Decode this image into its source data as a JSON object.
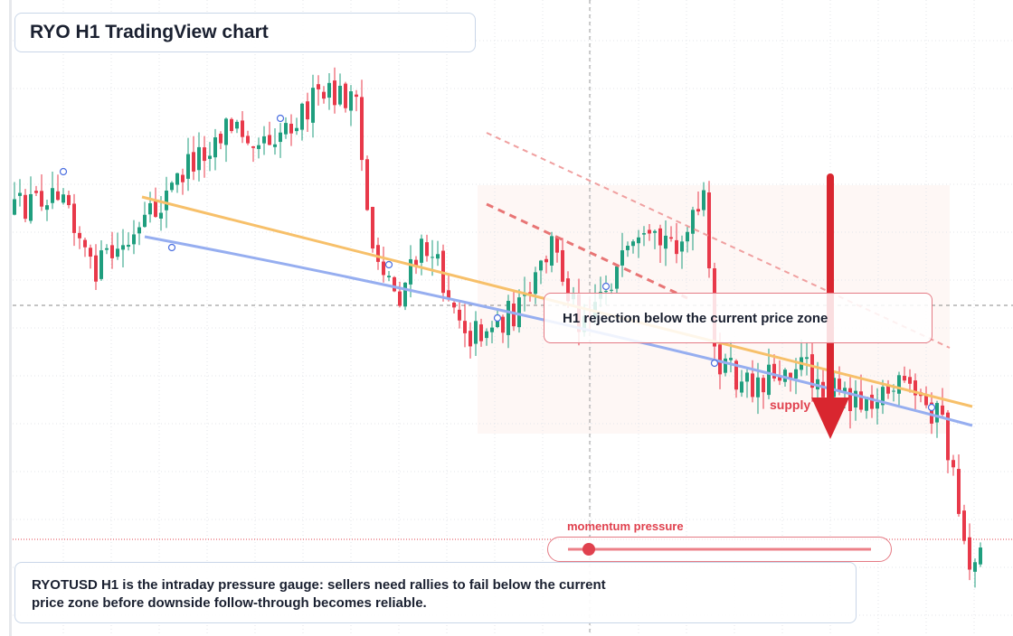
{
  "header": {
    "title": "RYO H1 TradingView chart"
  },
  "annotations": {
    "rejection": "H1 rejection below the current price zone",
    "supply": "supply",
    "momentum": "momentum pressure"
  },
  "caption": "RYOTUSD H1 is the intraday pressure gauge: sellers need rallies to fail below the current price zone before downside follow-through becomes reliable."
}
